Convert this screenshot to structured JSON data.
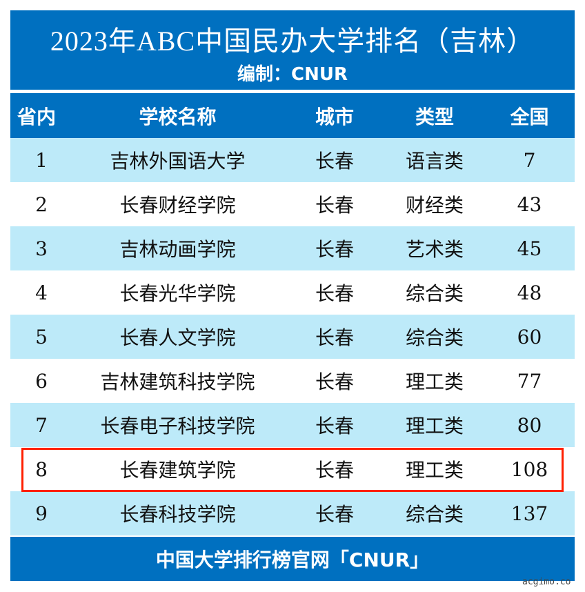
{
  "title": "2023年ABC中国民办大学排名（吉林）",
  "subtitle": "编制：CNUR",
  "headers": [
    "省内",
    "学校名称",
    "城市",
    "类型",
    "全国"
  ],
  "rows": [
    [
      "1",
      "吉林外国语大学",
      "长春",
      "语言类",
      "7"
    ],
    [
      "2",
      "长春财经学院",
      "长春",
      "财经类",
      "43"
    ],
    [
      "3",
      "吉林动画学院",
      "长春",
      "艺术类",
      "45"
    ],
    [
      "4",
      "长春光华学院",
      "长春",
      "综合类",
      "48"
    ],
    [
      "5",
      "长春人文学院",
      "长春",
      "综合类",
      "60"
    ],
    [
      "6",
      "吉林建筑科技学院",
      "长春",
      "理工类",
      "77"
    ],
    [
      "7",
      "长春电子科技学院",
      "长春",
      "理工类",
      "80"
    ],
    [
      "8",
      "长春建筑学院",
      "长春",
      "理工类",
      "108"
    ],
    [
      "9",
      "长春科技学院",
      "长春",
      "综合类",
      "137"
    ]
  ],
  "highlighted_rank": "8",
  "footer": "中国大学排行榜官网「CNUR」",
  "watermark": "acgimo.co",
  "colors": {
    "header": "#0070c0",
    "alt_row": "#bdeaf9",
    "highlight": "#ff2000"
  }
}
